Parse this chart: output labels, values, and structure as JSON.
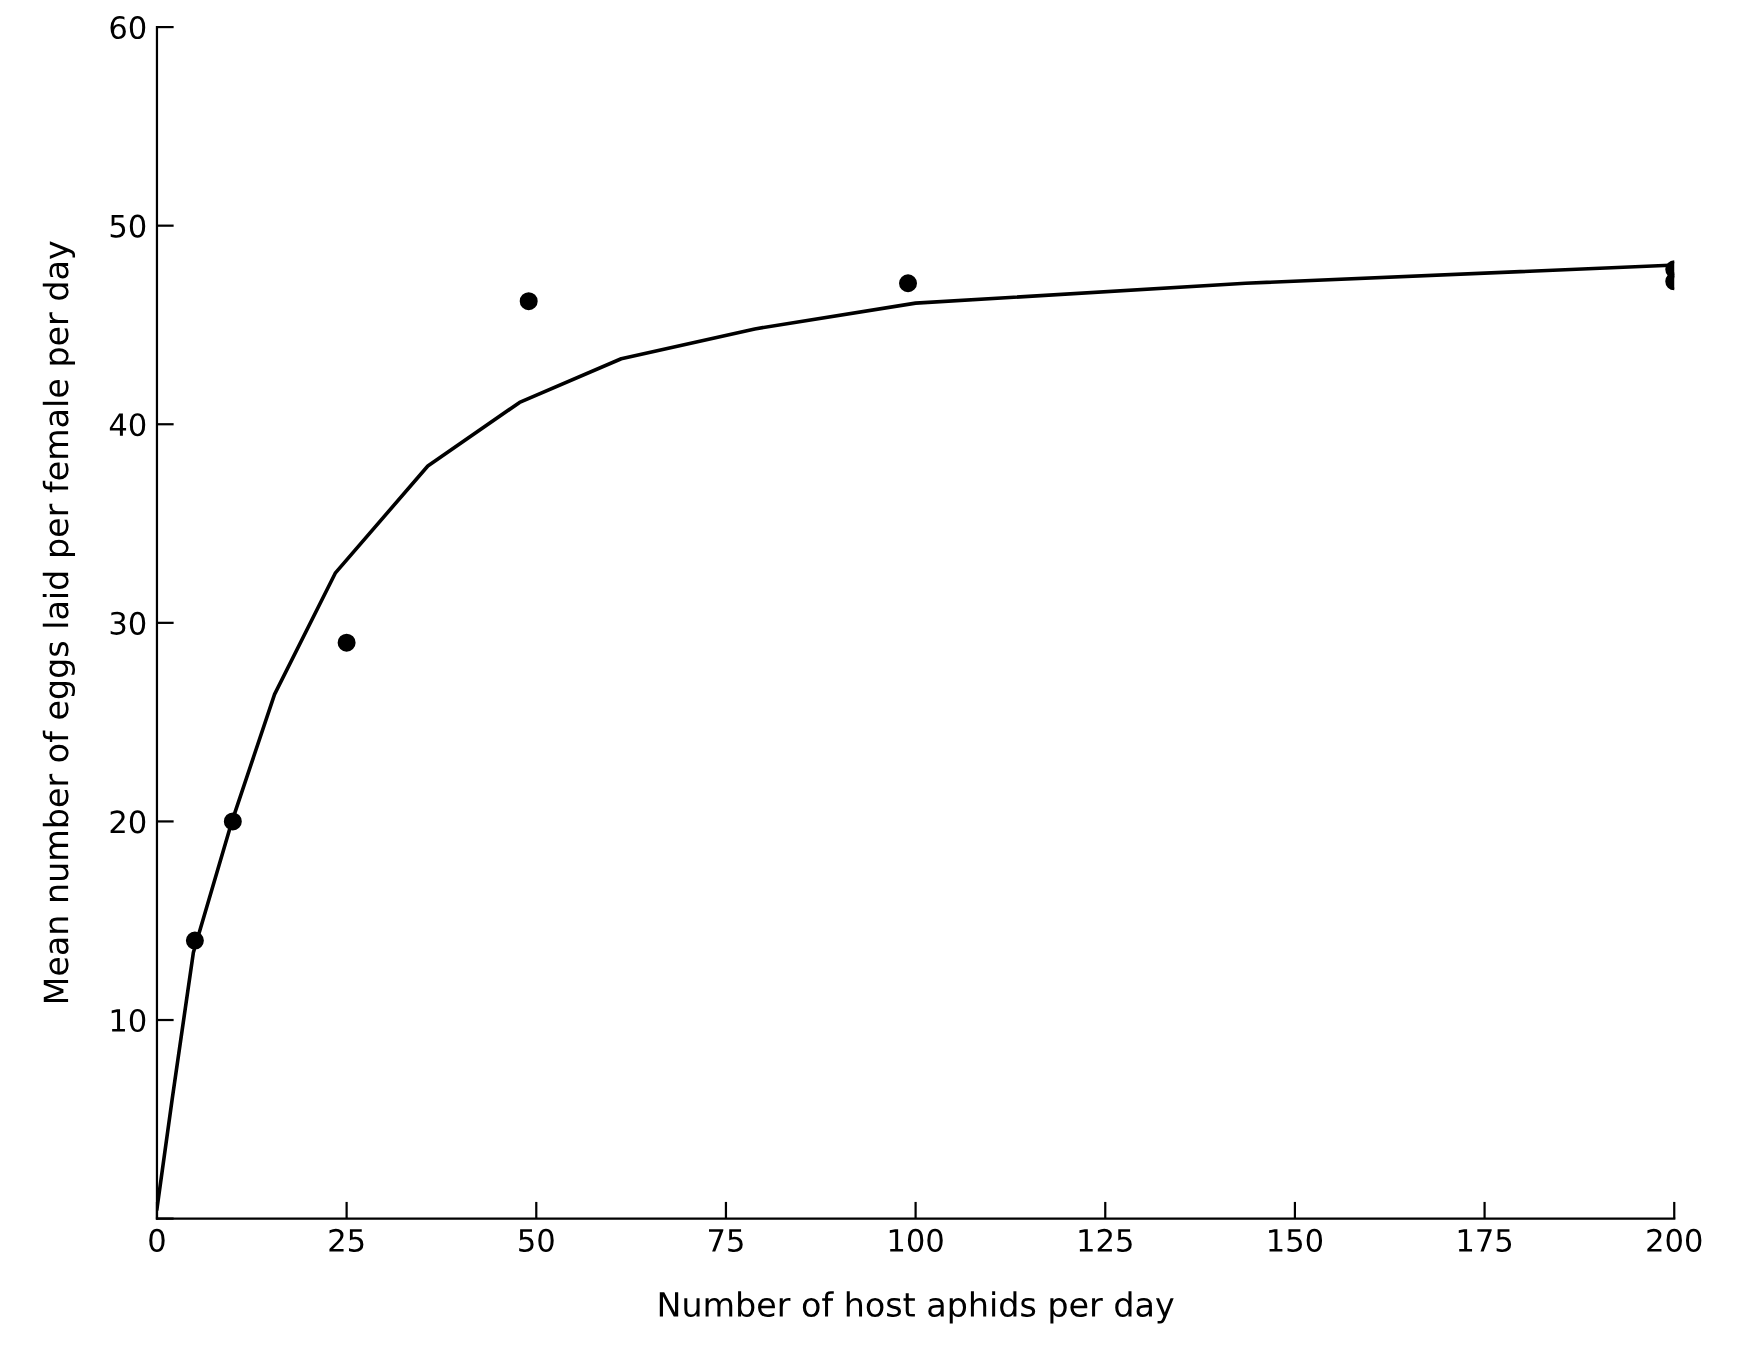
{
  "chart_data": {
    "type": "scatter",
    "xlabel": "Number of host aphids per day",
    "ylabel": "Mean number of eggs laid per female per day",
    "xlim": [
      0,
      200
    ],
    "ylim": [
      0,
      60
    ],
    "xticks": [
      0,
      25,
      50,
      75,
      100,
      125,
      150,
      175,
      200
    ],
    "yticks": [
      {
        "value": 0,
        "label": null
      },
      10,
      20,
      30,
      40,
      50,
      60
    ],
    "grid": false,
    "legend": false,
    "series": [
      {
        "color": "#000000",
        "marker": "circle",
        "x": [
          5,
          10,
          25,
          49,
          99,
          200,
          200
        ],
        "values": [
          14,
          20,
          29,
          46.2,
          47.1,
          47.8,
          47.2
        ]
      },
      {
        "type": "line",
        "color": "#000000",
        "marker": "none",
        "line_style": "solid",
        "x": [
          0,
          2,
          4.8,
          9.8,
          15.5,
          23.5,
          35.7,
          47.8,
          61.2,
          78.8,
          100,
          143.5,
          199.2
        ],
        "values": [
          0.5,
          6,
          13.4,
          19.9,
          26.4,
          32.5,
          37.9,
          41.1,
          43.3,
          44.8,
          46.1,
          47.1,
          48.0
        ]
      }
    ]
  }
}
